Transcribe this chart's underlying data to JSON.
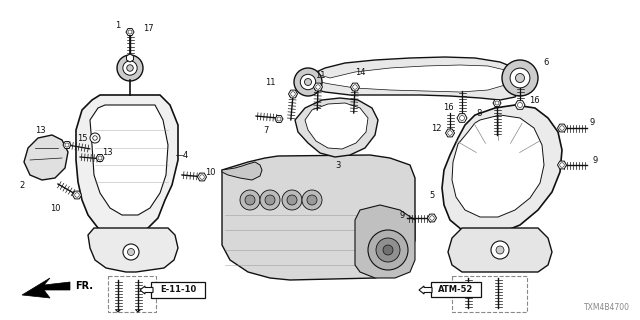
{
  "bg_color": "#ffffff",
  "fig_width": 6.4,
  "fig_height": 3.2,
  "dpi": 100,
  "part_id_text": "TXM4B4700",
  "fr_label": "FR.",
  "e1110_label": "E-11-10",
  "atm52_label": "ATM-52",
  "dark": "#111111",
  "gray": "#888888",
  "light_gray": "#cccccc",
  "mid_gray": "#999999"
}
